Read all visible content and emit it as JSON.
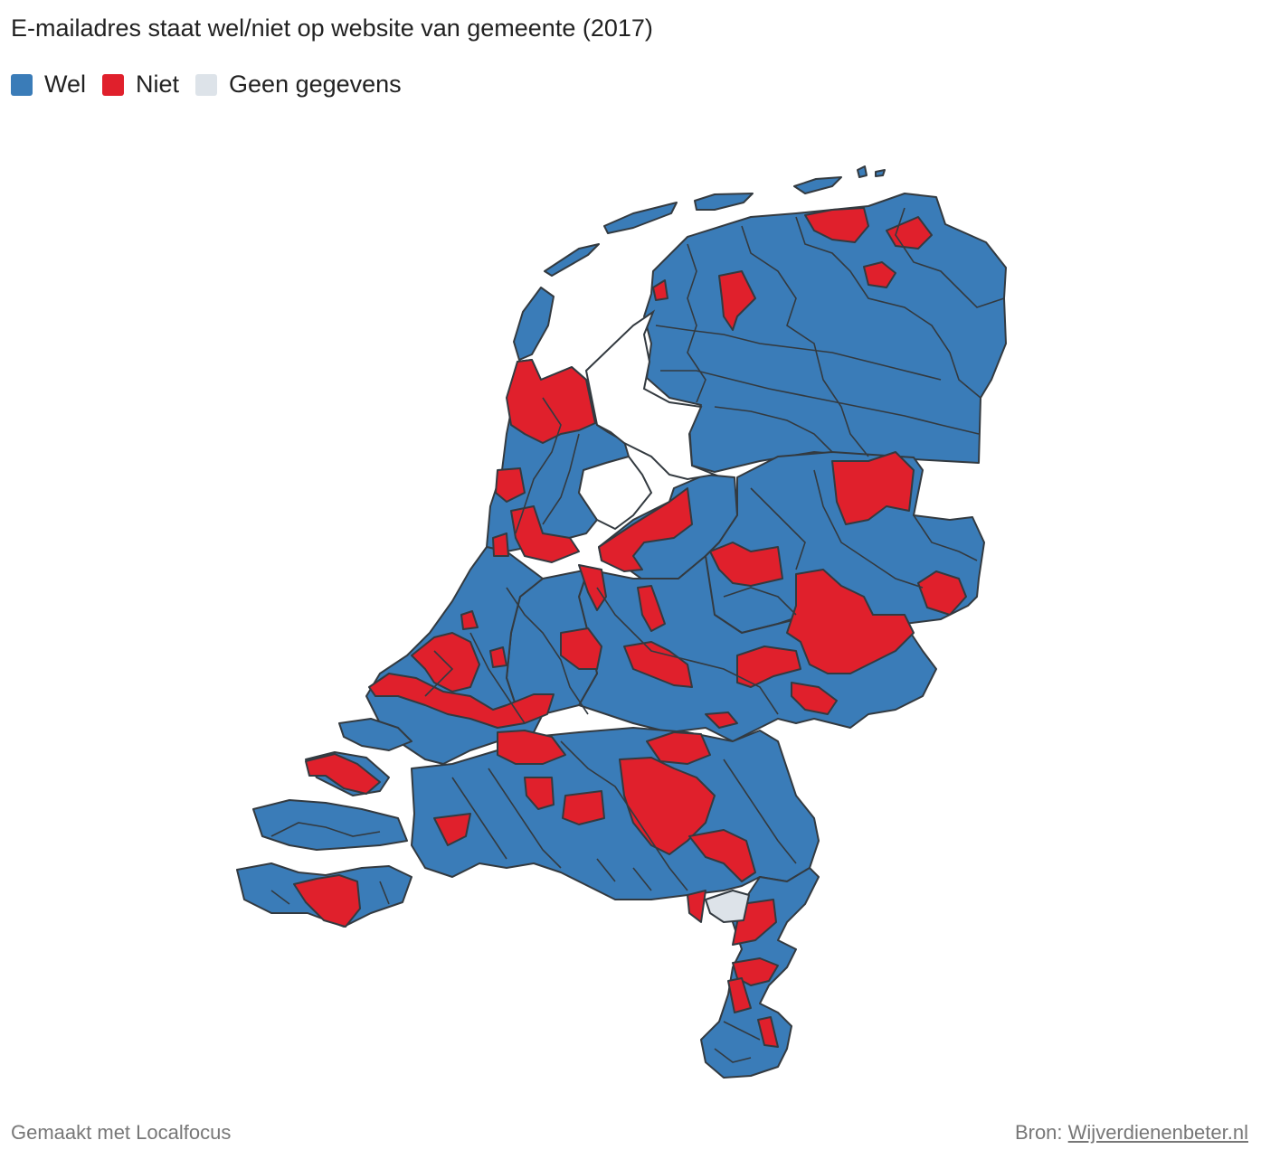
{
  "title": "E-mailadres staat wel/niet op website van gemeente (2017)",
  "legend": [
    {
      "label": "Wel",
      "color": "#3a7cb8"
    },
    {
      "label": "Niet",
      "color": "#e0202c"
    },
    {
      "label": "Geen gegevens",
      "color": "#dde3e9"
    }
  ],
  "footer": {
    "made_with": "Gemaakt met Localfocus",
    "source_label": "Bron:",
    "source_link": "Wijverdienenbeter.nl"
  },
  "colors": {
    "wel": "#3a7cb8",
    "niet": "#e0202c",
    "geen": "#dde3e9",
    "border": "#333a40"
  }
}
